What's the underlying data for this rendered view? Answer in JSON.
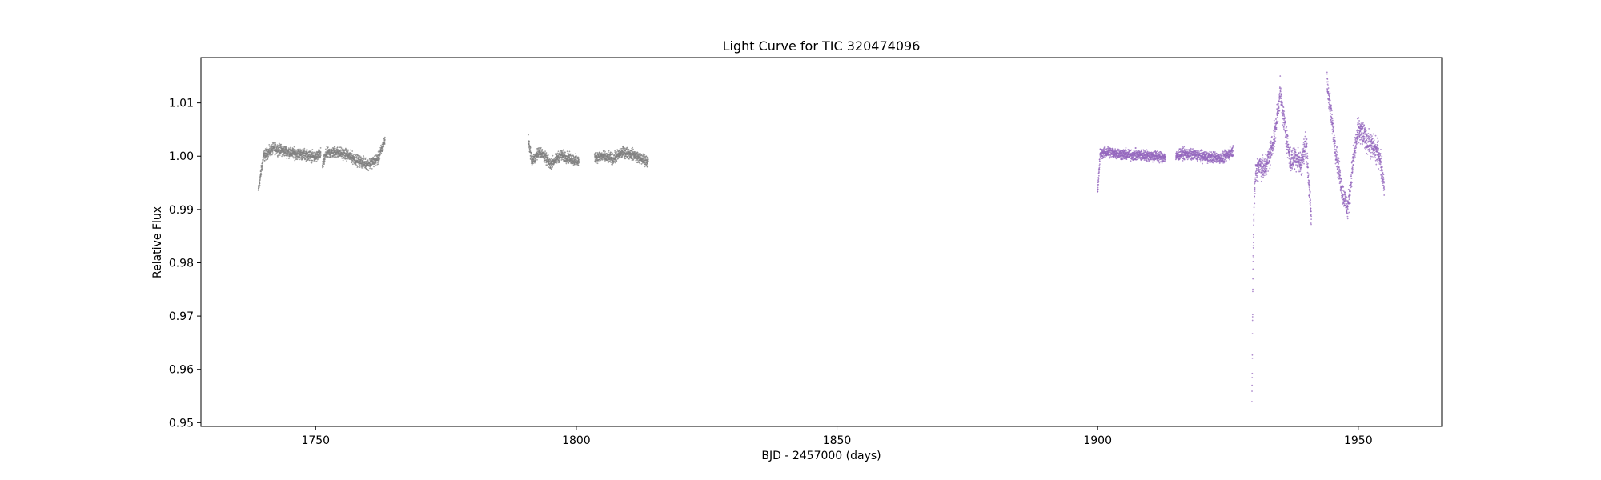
{
  "chart_data": {
    "type": "scatter",
    "title": "Light Curve for TIC 320474096",
    "xlabel": "BJD - 2457000 (days)",
    "ylabel": "Relative Flux",
    "xlim": [
      1728,
      1966
    ],
    "ylim": [
      0.9493,
      1.0185
    ],
    "xticks": [
      1750,
      1800,
      1850,
      1900,
      1950
    ],
    "xtick_labels": [
      "1750",
      "1800",
      "1850",
      "1900",
      "1950"
    ],
    "yticks": [
      0.95,
      0.96,
      0.97,
      0.98,
      0.99,
      1.0,
      1.01
    ],
    "ytick_labels": [
      "0.95",
      "0.96",
      "0.97",
      "0.98",
      "0.99",
      "1.00",
      "1.01"
    ],
    "grid": false,
    "legend": "none",
    "series": [
      {
        "color": "#808080",
        "segments": [
          {
            "x": [
              1739,
              1740,
              1742,
              1744,
              1746,
              1748,
              1750,
              1751
            ],
            "y": [
              0.9935,
              1.0,
              1.0015,
              1.001,
              1.0005,
              1.0003,
              0.9998,
              1.0005
            ]
          },
          {
            "x": [
              1751.3,
              1752,
              1754,
              1756,
              1758,
              1760,
              1762,
              1763.3
            ],
            "y": [
              0.998,
              1.0005,
              1.0008,
              1.0003,
              0.9992,
              0.9985,
              0.9995,
              1.003
            ]
          },
          {
            "x": [
              1790.8,
              1791.5,
              1793,
              1795,
              1797,
              1799,
              1800.5
            ],
            "y": [
              1.003,
              0.999,
              1.001,
              0.9985,
              1.0002,
              0.9995,
              0.999
            ]
          },
          {
            "x": [
              1803.5,
              1805,
              1807,
              1809,
              1811,
              1812.5,
              1813.8
            ],
            "y": [
              0.9998,
              1.0,
              0.9995,
              1.0008,
              1.0003,
              0.9995,
              0.999
            ]
          }
        ]
      },
      {
        "color": "#9467bd",
        "segments": [
          {
            "x": [
              1900,
              1900.5,
              1902,
              1905,
              1908,
              1911,
              1913
            ],
            "y": [
              0.993,
              1.0005,
              1.0008,
              1.0003,
              1.0002,
              1.0,
              0.9998
            ]
          },
          {
            "x": [
              1915,
              1916,
              1918,
              1920,
              1922,
              1924,
              1926
            ],
            "y": [
              0.9998,
              1.0005,
              1.0003,
              1.0,
              0.9998,
              0.9996,
              1.001
            ]
          },
          {
            "x": [
              1929.6,
              1929.8,
              1930,
              1930.3,
              1931,
              1932,
              1933,
              1934,
              1935,
              1936,
              1937,
              1938,
              1939,
              1940,
              1941
            ],
            "y": [
              0.9535,
              0.98,
              0.99,
              0.997,
              0.9985,
              0.9975,
              1.0,
              1.004,
              1.012,
              1.005,
              0.999,
              1.0,
              0.9985,
              1.0025,
              0.988
            ]
          },
          {
            "x": [
              1944,
              1945,
              1946,
              1947,
              1948,
              1949,
              1950,
              1951,
              1952,
              1953,
              1954,
              1955
            ],
            "y": [
              1.014,
              1.006,
              0.999,
              0.993,
              0.99,
              0.999,
              1.005,
              1.004,
              1.0025,
              1.0015,
              1.0005,
              0.9945
            ]
          }
        ]
      }
    ]
  }
}
